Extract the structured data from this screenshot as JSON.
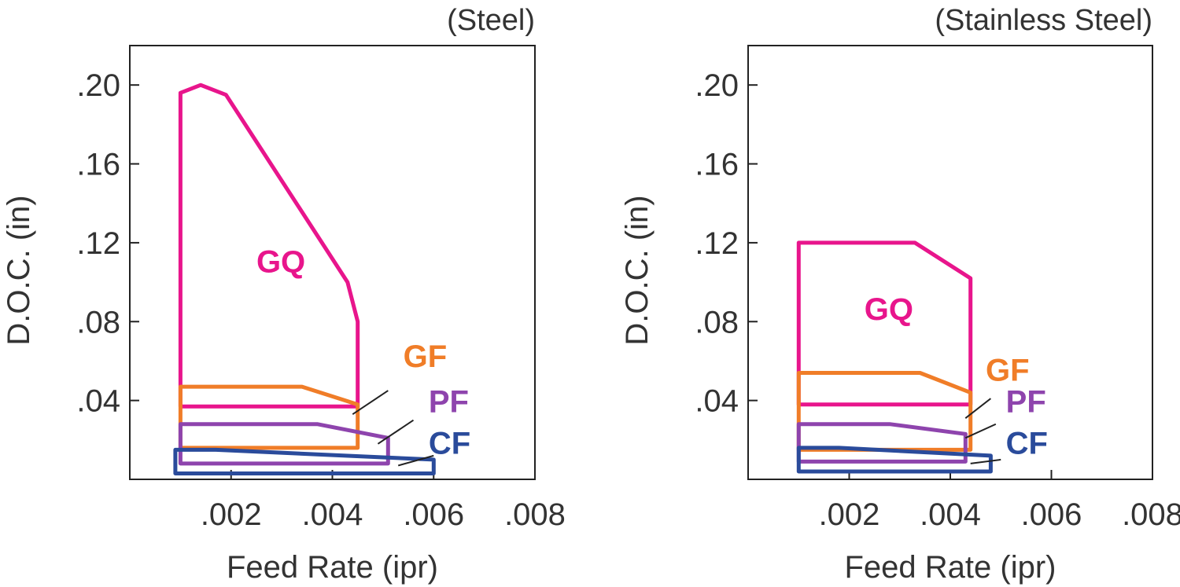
{
  "chart_data": [
    {
      "type": "area",
      "title": "(Steel)",
      "xlabel": "Feed Rate (ipr)",
      "ylabel": "D.O.C. (in)",
      "xlim": [
        0,
        0.008
      ],
      "ylim": [
        0,
        0.22
      ],
      "x_ticks": [
        {
          "value": 0.002,
          "label": ".002"
        },
        {
          "value": 0.004,
          "label": ".004"
        },
        {
          "value": 0.006,
          "label": ".006"
        },
        {
          "value": 0.008,
          "label": ".008"
        }
      ],
      "y_ticks": [
        {
          "value": 0.04,
          "label": ".04"
        },
        {
          "value": 0.08,
          "label": ".08"
        },
        {
          "value": 0.12,
          "label": ".12"
        },
        {
          "value": 0.16,
          "label": ".16"
        },
        {
          "value": 0.2,
          "label": ".20"
        }
      ],
      "grid": false,
      "series": [
        {
          "name": "GQ",
          "color": "#e8158c",
          "x": [
            0.001,
            0.001,
            0.0014,
            0.0019,
            0.0043,
            0.0045,
            0.0045,
            0.001
          ],
          "y": [
            0.037,
            0.196,
            0.2,
            0.195,
            0.1,
            0.08,
            0.037,
            0.037
          ],
          "label_at": [
            0.0025,
            0.105
          ],
          "leader": null
        },
        {
          "name": "GF",
          "color": "#f07d28",
          "x": [
            0.001,
            0.001,
            0.0034,
            0.0045,
            0.0045,
            0.001
          ],
          "y": [
            0.016,
            0.047,
            0.047,
            0.038,
            0.016,
            0.016
          ],
          "label_at": [
            0.0054,
            0.057
          ],
          "leader": [
            [
              0.0044,
              0.033
            ],
            [
              0.0051,
              0.045
            ]
          ]
        },
        {
          "name": "PF",
          "color": "#8e44ad",
          "x": [
            0.001,
            0.001,
            0.0037,
            0.0051,
            0.0051,
            0.001
          ],
          "y": [
            0.008,
            0.028,
            0.028,
            0.021,
            0.008,
            0.008
          ],
          "label_at": [
            0.0059,
            0.034
          ],
          "leader": [
            [
              0.0049,
              0.018
            ],
            [
              0.0056,
              0.03
            ]
          ]
        },
        {
          "name": "CF",
          "color": "#2a4b9b",
          "x": [
            0.0009,
            0.0009,
            0.0017,
            0.006,
            0.006,
            0.0009
          ],
          "y": [
            0.003,
            0.015,
            0.015,
            0.01,
            0.003,
            0.003
          ],
          "label_at": [
            0.0059,
            0.013
          ],
          "leader": [
            [
              0.0053,
              0.007
            ],
            [
              0.006,
              0.012
            ]
          ]
        }
      ]
    },
    {
      "type": "area",
      "title": "(Stainless Steel)",
      "xlabel": "Feed Rate (ipr)",
      "ylabel": "D.O.C. (in)",
      "xlim": [
        0,
        0.008
      ],
      "ylim": [
        0,
        0.22
      ],
      "x_ticks": [
        {
          "value": 0.002,
          "label": ".002"
        },
        {
          "value": 0.004,
          "label": ".004"
        },
        {
          "value": 0.006,
          "label": ".006"
        },
        {
          "value": 0.008,
          "label": ".008"
        }
      ],
      "y_ticks": [
        {
          "value": 0.04,
          "label": ".04"
        },
        {
          "value": 0.08,
          "label": ".08"
        },
        {
          "value": 0.12,
          "label": ".12"
        },
        {
          "value": 0.16,
          "label": ".16"
        },
        {
          "value": 0.2,
          "label": ".20"
        }
      ],
      "grid": false,
      "series": [
        {
          "name": "GQ",
          "color": "#e8158c",
          "x": [
            0.001,
            0.001,
            0.0033,
            0.0044,
            0.0044,
            0.001
          ],
          "y": [
            0.038,
            0.12,
            0.12,
            0.102,
            0.038,
            0.038
          ],
          "label_at": [
            0.0023,
            0.081
          ],
          "leader": null
        },
        {
          "name": "GF",
          "color": "#f07d28",
          "x": [
            0.001,
            0.001,
            0.0034,
            0.0044,
            0.0044,
            0.001
          ],
          "y": [
            0.015,
            0.054,
            0.054,
            0.044,
            0.015,
            0.015
          ],
          "label_at": [
            0.0047,
            0.05
          ],
          "leader": [
            [
              0.0043,
              0.031
            ],
            [
              0.0048,
              0.041
            ]
          ]
        },
        {
          "name": "PF",
          "color": "#8e44ad",
          "x": [
            0.001,
            0.001,
            0.0028,
            0.0043,
            0.0043,
            0.001
          ],
          "y": [
            0.009,
            0.028,
            0.028,
            0.023,
            0.009,
            0.009
          ],
          "label_at": [
            0.0051,
            0.034
          ],
          "leader": [
            [
              0.0043,
              0.021
            ],
            [
              0.0049,
              0.028
            ]
          ]
        },
        {
          "name": "CF",
          "color": "#2a4b9b",
          "x": [
            0.001,
            0.001,
            0.0018,
            0.0048,
            0.0048,
            0.001
          ],
          "y": [
            0.004,
            0.016,
            0.016,
            0.012,
            0.004,
            0.004
          ],
          "label_at": [
            0.0051,
            0.013
          ],
          "leader": [
            [
              0.0044,
              0.008
            ],
            [
              0.005,
              0.01
            ]
          ]
        }
      ]
    }
  ]
}
